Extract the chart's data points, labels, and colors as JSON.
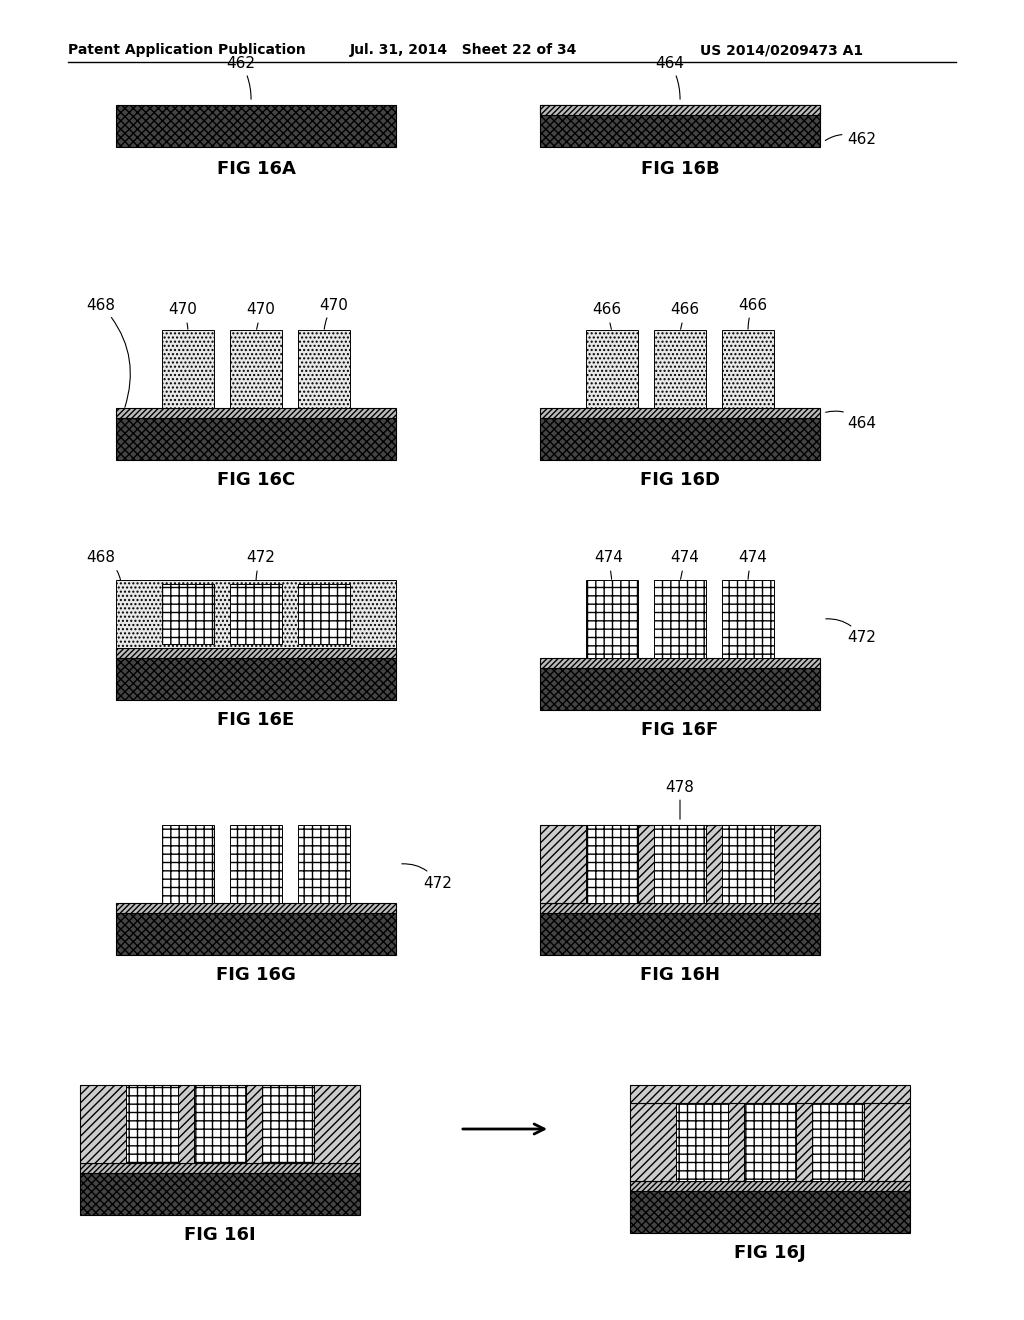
{
  "header_left": "Patent Application Publication",
  "header_mid": "Jul. 31, 2014   Sheet 22 of 34",
  "header_right": "US 2014/0209473 A1",
  "bg_color": "#ffffff",
  "dark_fc": "#444444",
  "dark_hatch": "xxxx",
  "stripe_fc": "#bbbbbb",
  "stripe_hatch": "////",
  "dot_fc": "#e8e8e8",
  "dot_hatch": "....",
  "grid_fc": "#ffffff",
  "grid_hatch": "++",
  "diag_fc": "#cccccc",
  "diag_hatch": "////",
  "label_fontsize": 11,
  "figlabel_fontsize": 13
}
